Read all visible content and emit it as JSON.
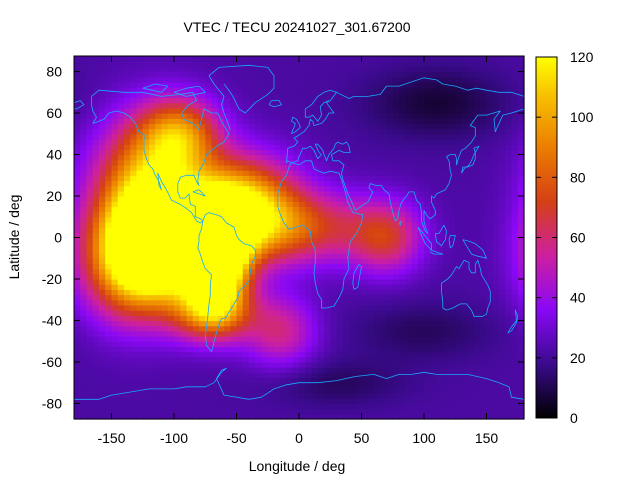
{
  "chart_data": {
    "type": "heatmap",
    "title": "VTEC / TECU 20241027_301.67200",
    "xlabel": "Longitude / deg",
    "ylabel": "Latitude / deg",
    "xlim": [
      -180,
      180
    ],
    "ylim": [
      -87.5,
      87.5
    ],
    "x_ticks": [
      -150,
      -100,
      -50,
      0,
      50,
      100,
      150
    ],
    "y_ticks": [
      -80,
      -60,
      -40,
      -20,
      0,
      20,
      40,
      60,
      80
    ],
    "colorbar": {
      "range": [
        0,
        120
      ],
      "ticks": [
        0,
        20,
        40,
        60,
        80,
        100,
        120
      ],
      "palette": "black-purple-red-orange-yellow"
    },
    "background_vtec": 22,
    "peaks": [
      {
        "lon": -102,
        "lat": 0,
        "value": 115,
        "sigma_lon": 34,
        "sigma_lat": 16
      },
      {
        "lon": -65,
        "lat": -10,
        "value": 112,
        "sigma_lon": 16,
        "sigma_lat": 16
      },
      {
        "lon": -45,
        "lat": 15,
        "value": 88,
        "sigma_lon": 30,
        "sigma_lat": 16
      },
      {
        "lon": -120,
        "lat": 25,
        "value": 80,
        "sigma_lon": 30,
        "sigma_lat": 22
      },
      {
        "lon": -130,
        "lat": -15,
        "value": 80,
        "sigma_lon": 28,
        "sigma_lat": 18
      },
      {
        "lon": -70,
        "lat": -35,
        "value": 68,
        "sigma_lon": 22,
        "sigma_lat": 10
      },
      {
        "lon": -95,
        "lat": 50,
        "value": 58,
        "sigma_lon": 22,
        "sigma_lat": 12
      },
      {
        "lon": 5,
        "lat": 5,
        "value": 45,
        "sigma_lon": 40,
        "sigma_lat": 12
      },
      {
        "lon": 70,
        "lat": 0,
        "value": 40,
        "sigma_lon": 20,
        "sigma_lat": 12
      },
      {
        "lon": -15,
        "lat": -45,
        "value": 35,
        "sigma_lon": 20,
        "sigma_lat": 12
      }
    ],
    "troughs": [
      {
        "lon": 110,
        "lat": 65,
        "value": -15,
        "sigma_lon": 40,
        "sigma_lat": 12
      },
      {
        "lon": 100,
        "lat": -45,
        "value": -10,
        "sigma_lon": 40,
        "sigma_lat": 10
      },
      {
        "lon": 30,
        "lat": -70,
        "value": -10,
        "sigma_lon": 40,
        "sigma_lat": 8
      }
    ]
  }
}
